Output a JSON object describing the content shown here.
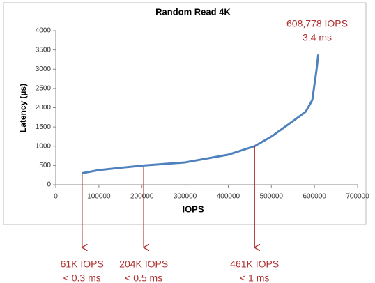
{
  "chart_data": {
    "type": "line",
    "title": "Random Read 4K",
    "x_label": "IOPS",
    "y_label": "Latency (µs)",
    "series": [
      {
        "name": "Latency",
        "color": "#4f81bd",
        "x": [
          61000,
          100000,
          150000,
          204000,
          300000,
          400000,
          461000,
          500000,
          550000,
          580000,
          595000,
          600000,
          605000,
          608778
        ],
        "values": [
          300,
          380,
          440,
          500,
          580,
          780,
          1000,
          1250,
          1650,
          1900,
          2200,
          2600,
          3000,
          3380
        ]
      }
    ],
    "xlim": [
      0,
      700000
    ],
    "xticks": [
      0,
      100000,
      200000,
      300000,
      400000,
      500000,
      600000,
      700000
    ],
    "ylim": [
      0,
      4000
    ],
    "yticks": [
      0,
      500,
      1000,
      1500,
      2000,
      2500,
      3000,
      3500,
      4000
    ],
    "grid": false,
    "annotations": [
      {
        "lines": [
          "608,778 IOPS",
          "3.4 ms"
        ]
      },
      {
        "lines": [
          "61K IOPS",
          "< 0.3 ms"
        ]
      },
      {
        "lines": [
          "204K IOPS",
          "< 0.5 ms"
        ]
      },
      {
        "lines": [
          "461K IOPS",
          "< 1 ms"
        ]
      }
    ]
  }
}
